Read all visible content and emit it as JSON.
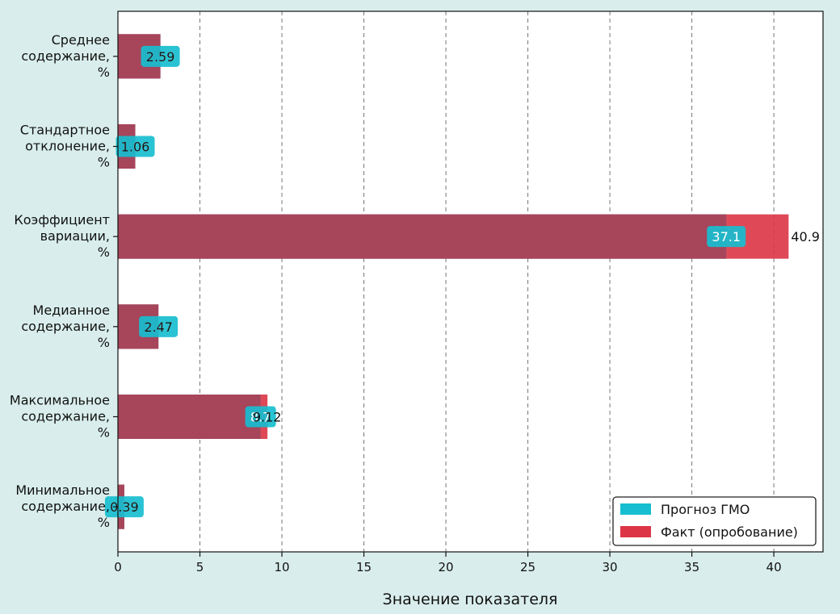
{
  "chart_data": {
    "type": "bar",
    "orientation": "horizontal",
    "xlabel": "Значение показателя",
    "xlim": [
      0,
      43
    ],
    "xticks": [
      0,
      5,
      10,
      15,
      20,
      25,
      30,
      35,
      40
    ],
    "grid": "vertical-dashed",
    "legend_position": "lower-right",
    "categories": [
      [
        "Среднее",
        "содержание,",
        "%"
      ],
      [
        "Стандартное",
        "отклонение,",
        "%"
      ],
      [
        "Коэффициент",
        "вариации,",
        "%"
      ],
      [
        "Медианное",
        "содержание,",
        "%"
      ],
      [
        "Максимальное",
        "содержание,",
        "%"
      ],
      [
        "Минимальное",
        "содержание,",
        "%"
      ]
    ],
    "series": [
      {
        "name": "Прогноз ГМО",
        "color": "#17becf",
        "values": [
          2.59,
          1.06,
          37.1,
          2.47,
          8.7,
          0.39
        ],
        "labels": [
          "2.59",
          "1.06",
          "37.1",
          "2.47",
          "8.7",
          "0.39"
        ]
      },
      {
        "name": "Факт (опробование)",
        "color": "#dc3545",
        "values": [
          2.59,
          1.06,
          40.9,
          2.47,
          9.12,
          0.39
        ],
        "labels": [
          "2.59",
          "1.06",
          "40.9",
          "2.47",
          "9.12",
          "0.39"
        ]
      }
    ]
  }
}
